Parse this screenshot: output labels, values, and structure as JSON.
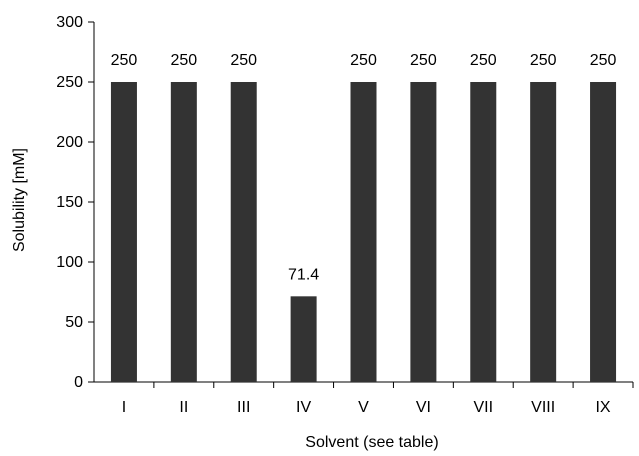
{
  "chart_data": {
    "type": "bar",
    "title": "",
    "xlabel": "Solvent (see table)",
    "ylabel": "Solubility [mM]",
    "categories": [
      "I",
      "II",
      "III",
      "IV",
      "V",
      "VI",
      "VII",
      "VIII",
      "IX"
    ],
    "values": [
      250,
      250,
      250,
      71.4,
      250,
      250,
      250,
      250,
      250
    ],
    "data_labels": [
      "250",
      "250",
      "250",
      "71.4",
      "250",
      "250",
      "250",
      "250",
      "250"
    ],
    "ylim": [
      0,
      300
    ],
    "yticks": [
      0,
      50,
      100,
      150,
      200,
      250,
      300
    ],
    "grid": false,
    "legend": "none",
    "bar_color": "#333333"
  }
}
